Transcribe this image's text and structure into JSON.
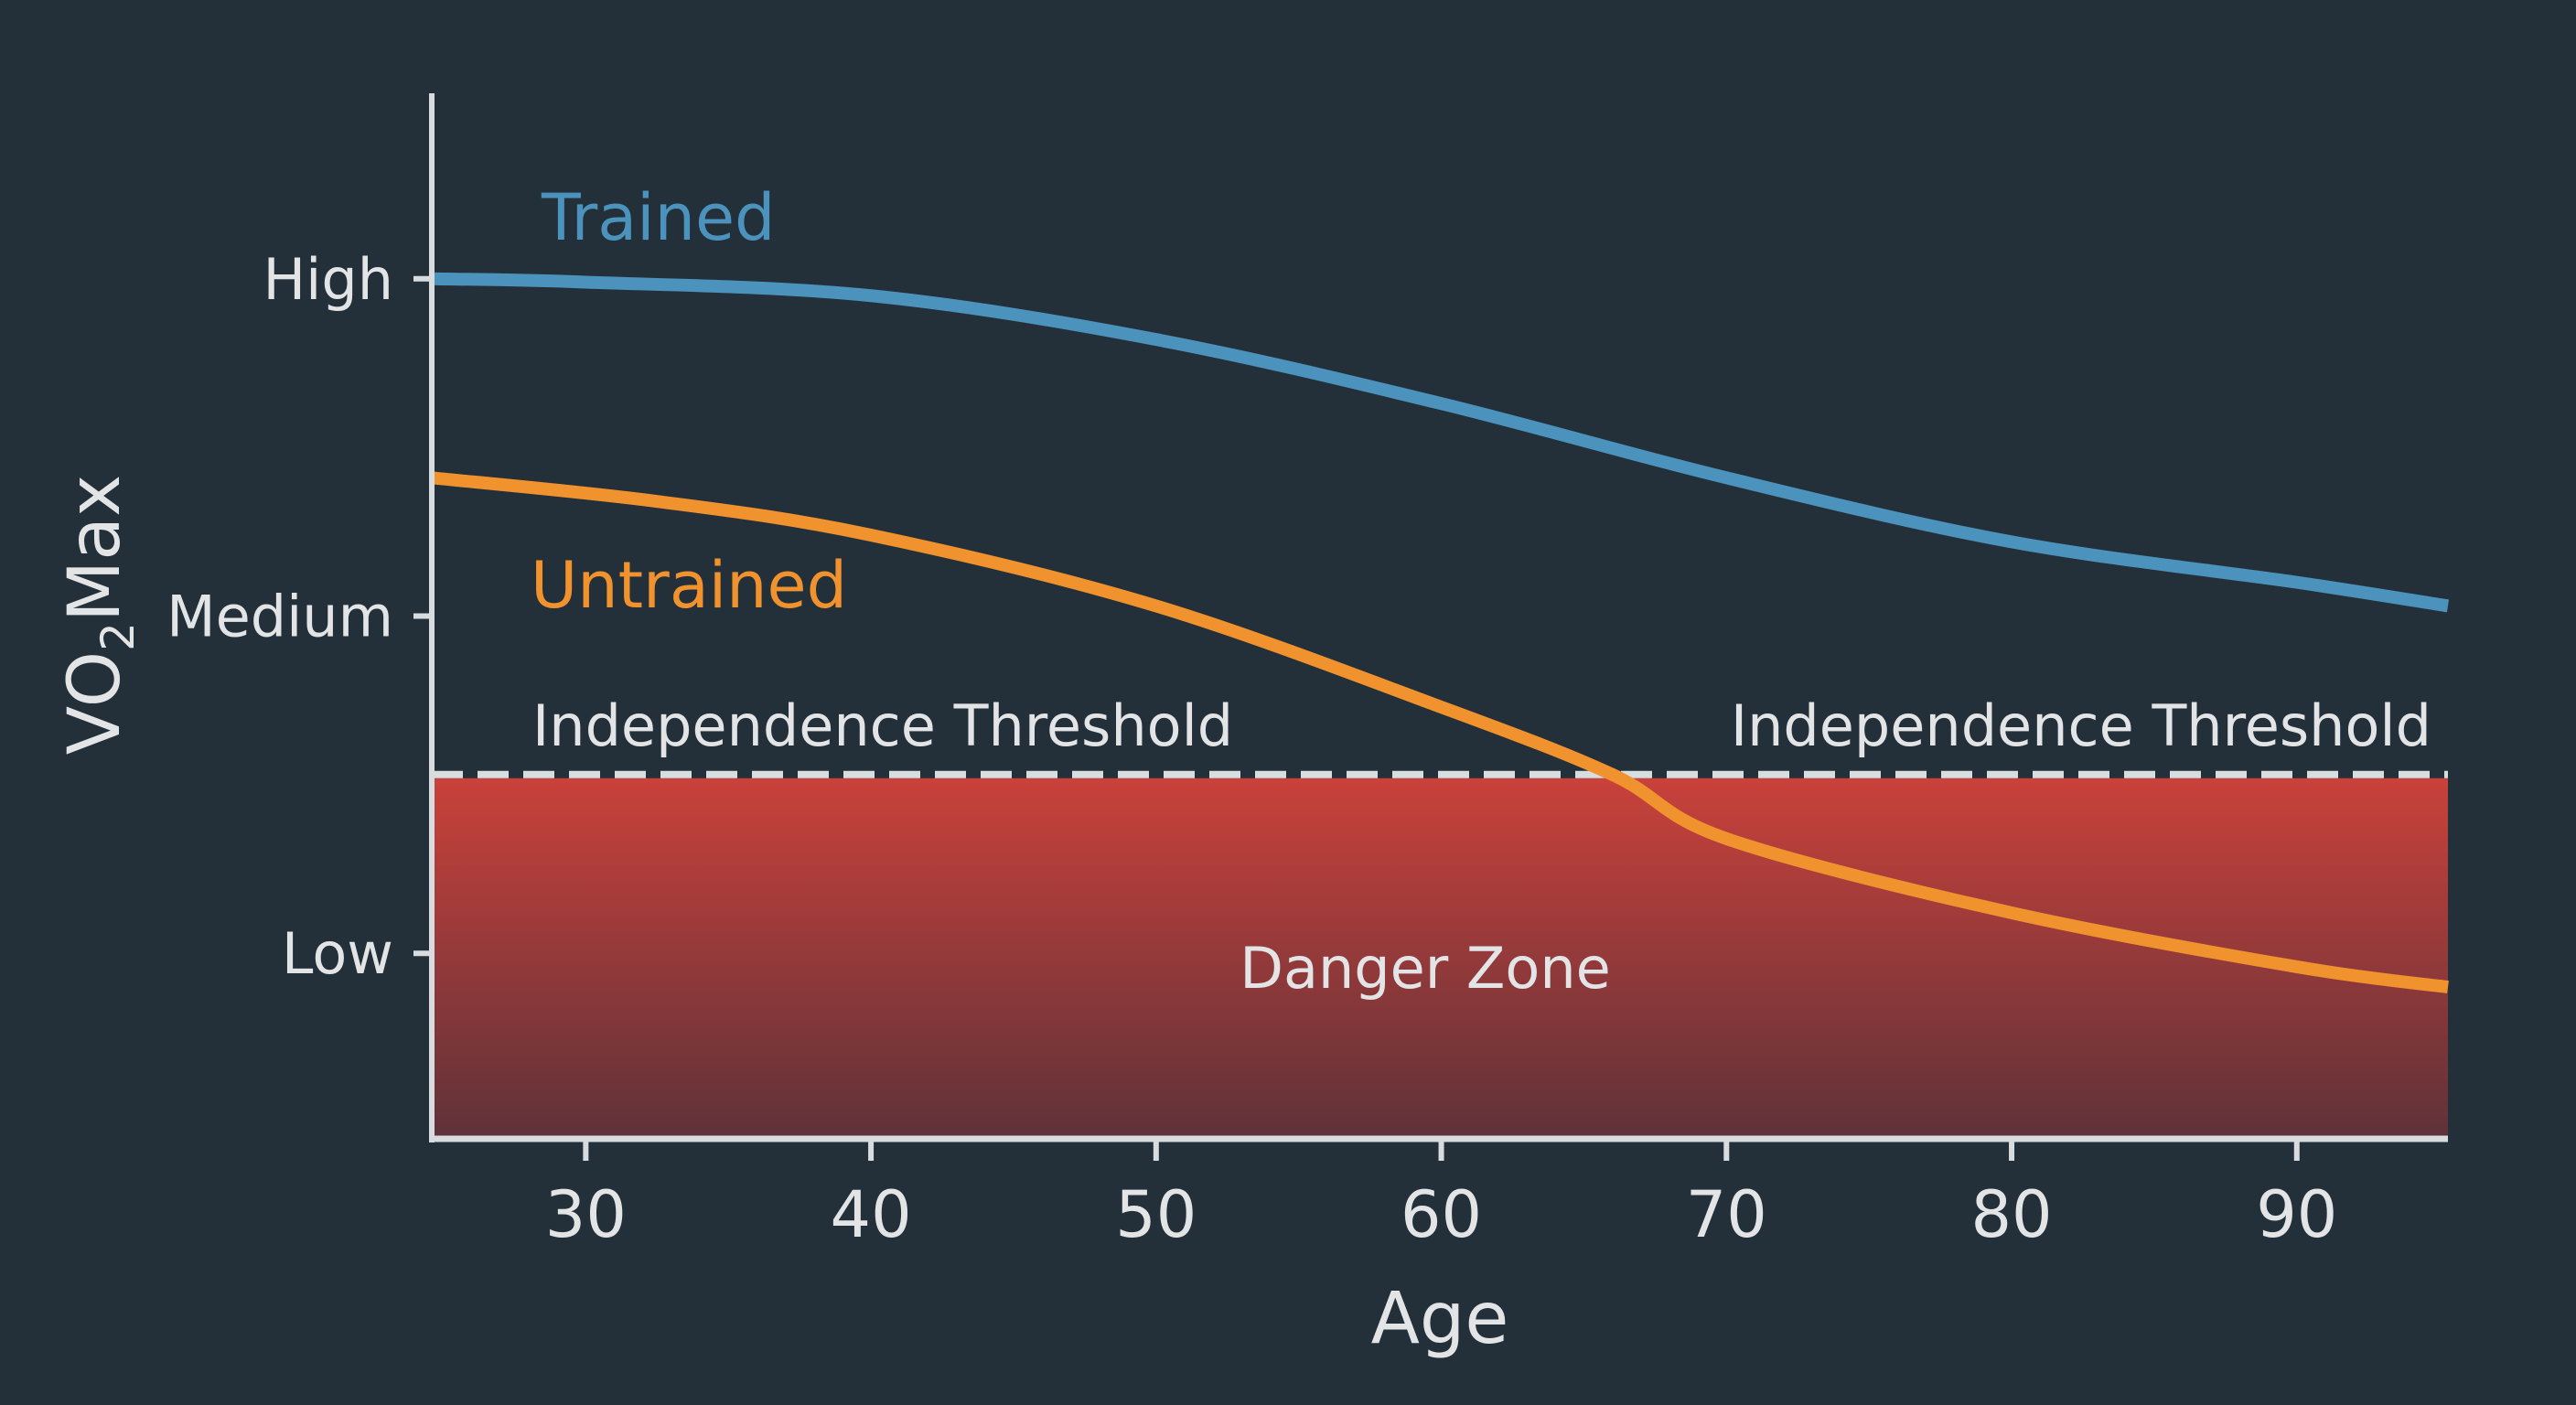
{
  "chart_data": {
    "type": "line",
    "title": "",
    "xlabel": "Age",
    "ylabel_main": "VO",
    "ylabel_sub": "2",
    "ylabel_rest": "Max",
    "xlim": [
      24.6,
      95.3
    ],
    "ylim": [
      0.45,
      3.55
    ],
    "x_ticks": [
      30,
      40,
      50,
      60,
      70,
      80,
      90
    ],
    "y_ticks": [
      {
        "value": 3,
        "label": "High"
      },
      {
        "value": 2,
        "label": "Medium"
      },
      {
        "value": 1,
        "label": "Low"
      }
    ],
    "grid": false,
    "series": [
      {
        "name": "Trained",
        "color": "#4b93bd",
        "x": [
          24.6,
          30,
          40,
          50,
          60,
          70,
          80,
          90,
          95.3
        ],
        "y": [
          3.0,
          2.99,
          2.95,
          2.82,
          2.63,
          2.41,
          2.22,
          2.1,
          2.03
        ]
      },
      {
        "name": "Untrained",
        "color": "#f0922e",
        "x": [
          24.6,
          32.5,
          40,
          50,
          60,
          66,
          70,
          80,
          90,
          95.3
        ],
        "y": [
          2.41,
          2.34,
          2.24,
          2.03,
          1.73,
          1.53,
          1.34,
          1.12,
          0.96,
          0.9
        ]
      }
    ],
    "threshold": {
      "value": 1.53,
      "label_left": "Independence Threshold",
      "label_right": "Independence Threshold",
      "color": "#d8dde0"
    },
    "danger_zone": {
      "label": "Danger Zone",
      "from": 0.45,
      "to": 1.53,
      "color_top": "#c9413a",
      "color_bottom": "#5e3239"
    },
    "background": "#243039"
  }
}
